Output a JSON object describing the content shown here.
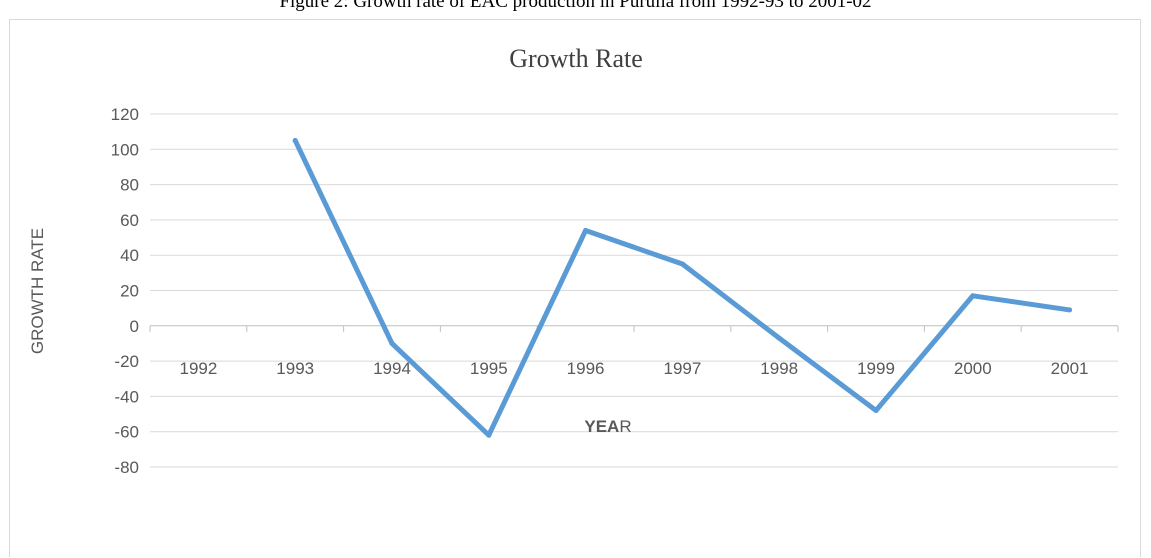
{
  "caption": "Figure 2: Growth rate of EAC production in Purulia from 1992-93 to 2001-02",
  "chart_data": {
    "type": "line",
    "title": "Growth Rate",
    "xlabel_bold": "YEA",
    "xlabel_rest": "R",
    "ylabel": "GROWTH RATE",
    "categories": [
      "1992",
      "1993",
      "1994",
      "1995",
      "1996",
      "1997",
      "1998",
      "1999",
      "2000",
      "2001"
    ],
    "series": [
      {
        "values": [
          null,
          105,
          -10,
          -62,
          54,
          35,
          -7,
          -48,
          17,
          9
        ],
        "color": "#5b9bd5"
      }
    ],
    "y_ticks": [
      "120",
      "100",
      "80",
      "60",
      "40",
      "20",
      "0",
      "-20",
      "-40",
      "-60",
      "-80"
    ],
    "ylim": [
      -80,
      120
    ],
    "grid": true,
    "legend": "none",
    "colors": {
      "gridline": "#d9d9d9",
      "axis": "#bfbfbf"
    }
  }
}
